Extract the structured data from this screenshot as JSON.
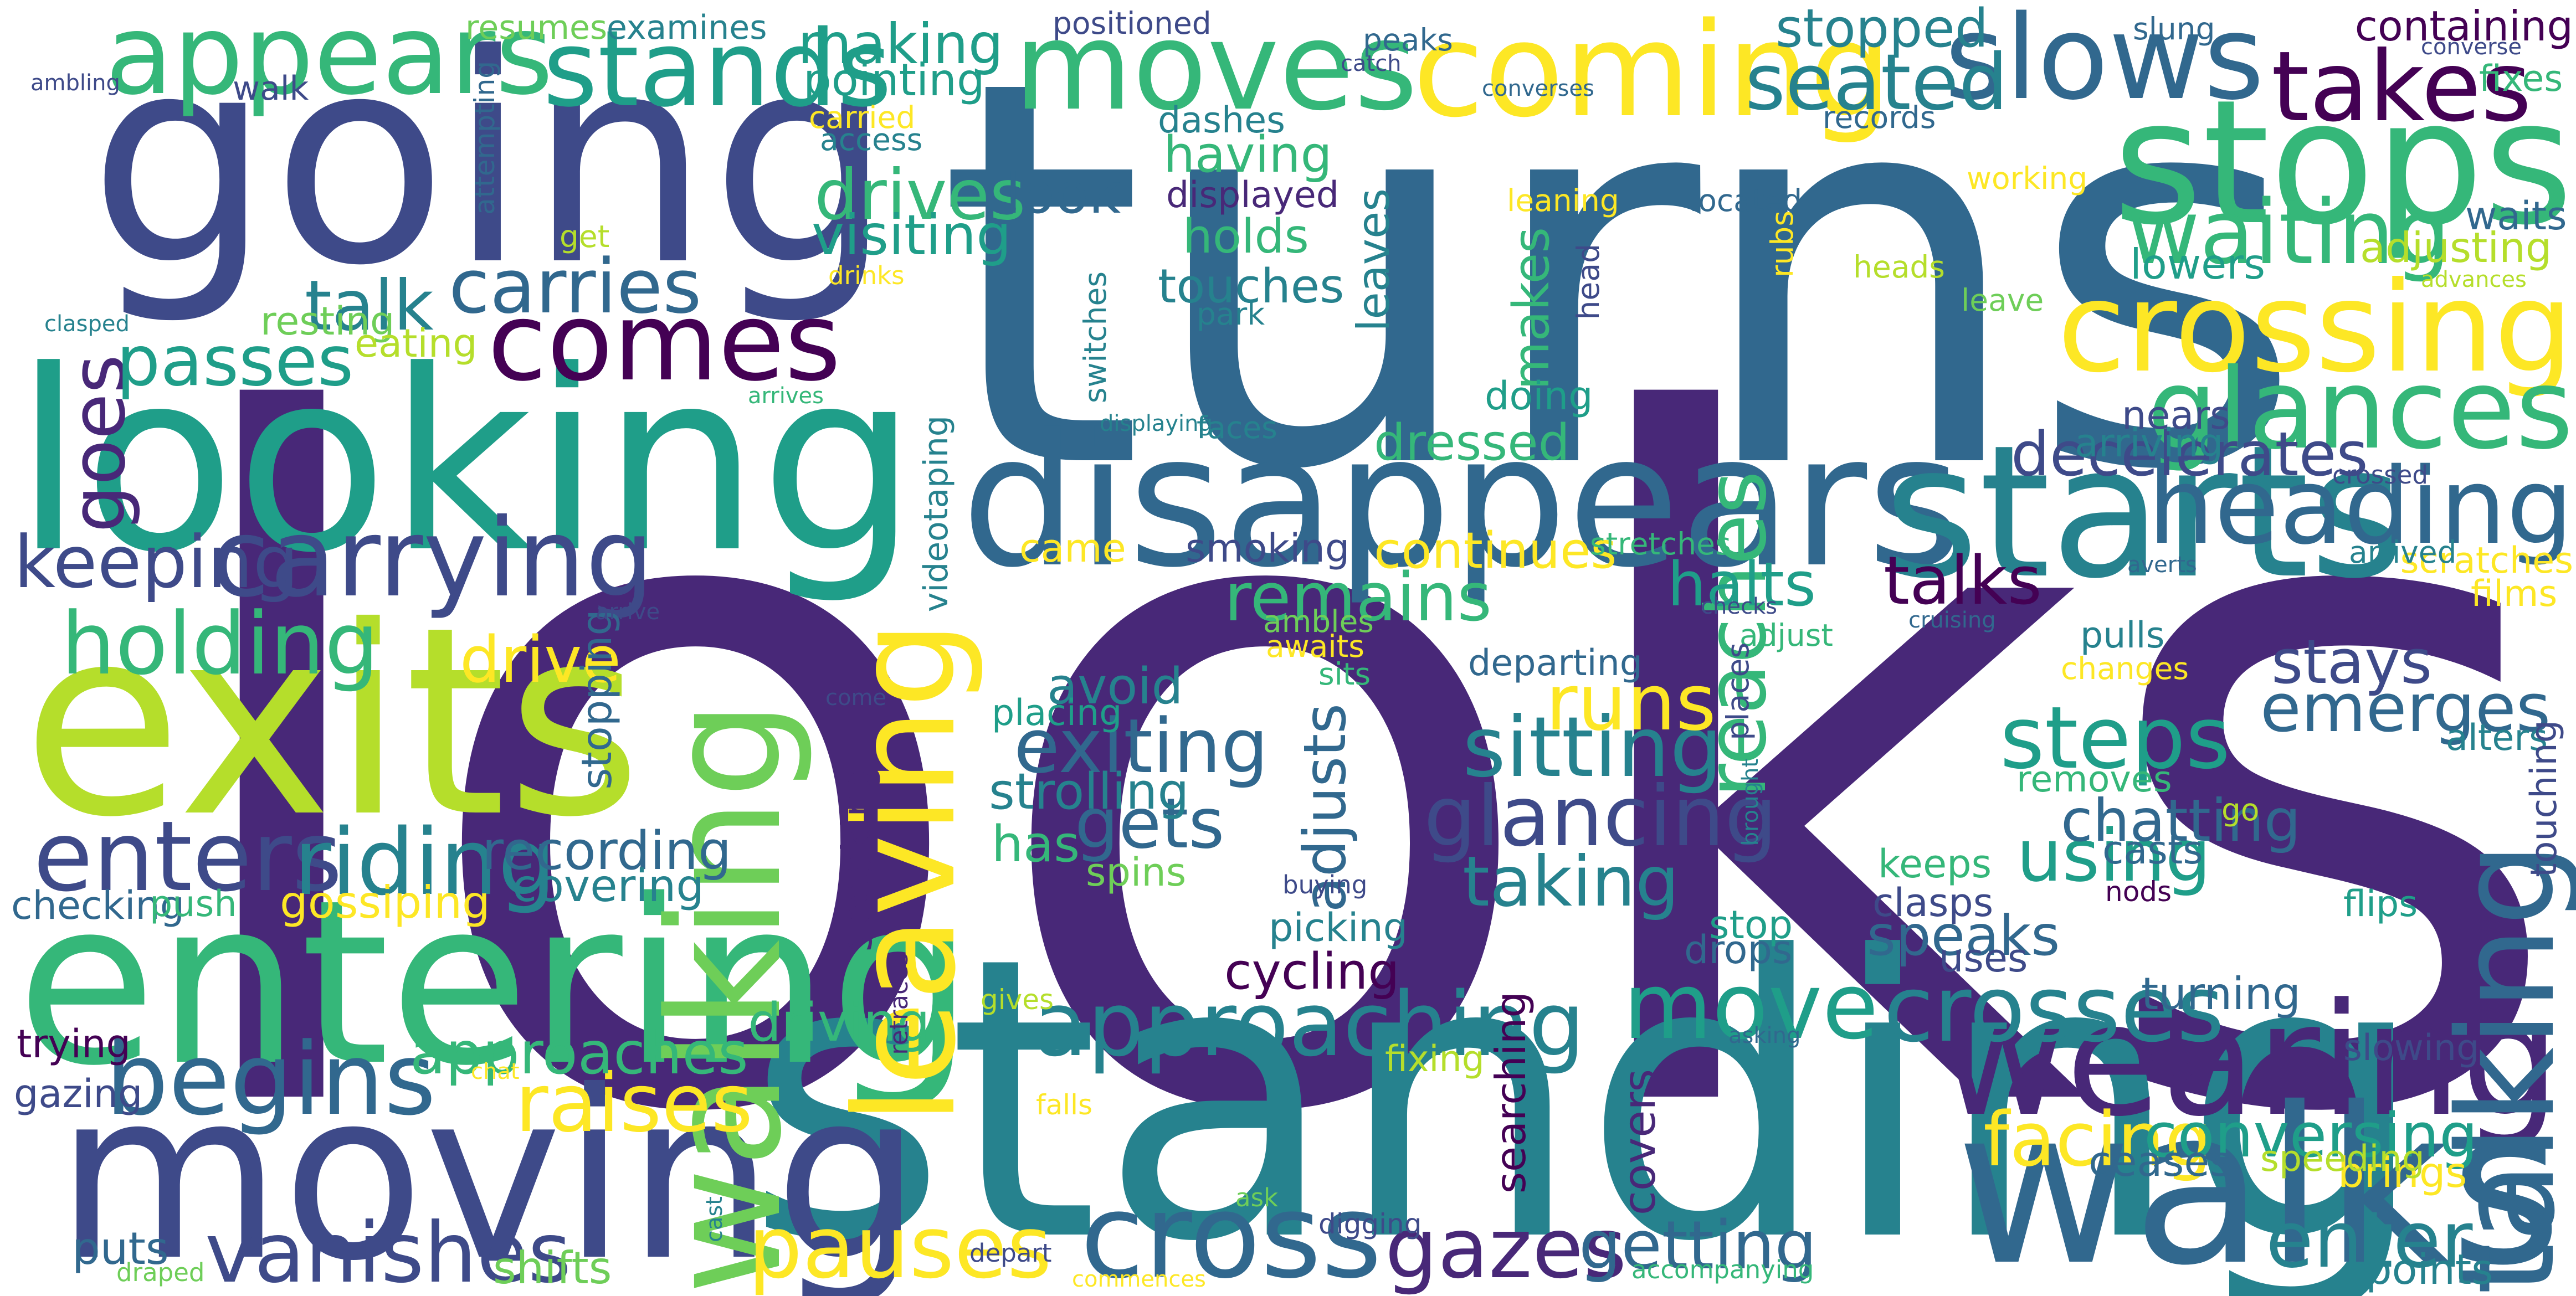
{
  "palette": {
    "dark_purple": "#440154",
    "indigo": "#482878",
    "slate_blue": "#3e4a89",
    "steel_blue": "#31688e",
    "teal_blue": "#26828e",
    "teal": "#1f9e89",
    "green_teal": "#35b779",
    "green": "#6ece58",
    "lime": "#b5de2b",
    "yellow": "#fde725"
  },
  "words": [
    {
      "text": "looks",
      "size": 230,
      "color": "#482878"
    },
    {
      "text": "turns",
      "size": 135,
      "color": "#31688e"
    },
    {
      "text": "standing",
      "size": 100,
      "color": "#26828e"
    },
    {
      "text": "going",
      "size": 70,
      "color": "#3e4a89"
    },
    {
      "text": "exits",
      "size": 64,
      "color": "#b5de2b"
    },
    {
      "text": "looking",
      "size": 62,
      "color": "#1f9e89"
    },
    {
      "text": "moving",
      "size": 58,
      "color": "#3e4a89"
    },
    {
      "text": "entering",
      "size": 56,
      "color": "#35b779"
    },
    {
      "text": "walks",
      "size": 54,
      "color": "#31688e"
    },
    {
      "text": "disappears",
      "size": 47,
      "color": "#31688e"
    },
    {
      "text": "starts",
      "size": 46,
      "color": "#26828e"
    },
    {
      "text": "stops",
      "size": 44,
      "color": "#35b779"
    },
    {
      "text": "wearing",
      "size": 40,
      "color": "#482878"
    },
    {
      "text": "walking",
      "size": 36,
      "color": "#6ece58"
    },
    {
      "text": "leaving",
      "size": 35,
      "color": "#fde725"
    },
    {
      "text": "talking",
      "size": 34,
      "color": "#31688e"
    },
    {
      "text": "coming",
      "size": 32,
      "color": "#fde725"
    },
    {
      "text": "crossing",
      "size": 31,
      "color": "#fde725"
    },
    {
      "text": "moves",
      "size": 30,
      "color": "#35b779"
    },
    {
      "text": "cross",
      "size": 30,
      "color": "#31688e"
    },
    {
      "text": "slows",
      "size": 29,
      "color": "#31688e"
    },
    {
      "text": "appears",
      "size": 28,
      "color": "#35b779"
    },
    {
      "text": "glances",
      "size": 28,
      "color": "#35b779"
    },
    {
      "text": "carrying",
      "size": 28,
      "color": "#3e4a89"
    },
    {
      "text": "comes",
      "size": 28,
      "color": "#440154"
    },
    {
      "text": "heading",
      "size": 27,
      "color": "#31688e"
    },
    {
      "text": "stands",
      "size": 26,
      "color": "#1f9e89"
    },
    {
      "text": "begins",
      "size": 26,
      "color": "#31688e"
    },
    {
      "text": "enters",
      "size": 25,
      "color": "#3e4a89"
    },
    {
      "text": "takes",
      "size": 24,
      "color": "#440154"
    },
    {
      "text": "crosses",
      "size": 23,
      "color": "#26828e"
    },
    {
      "text": "move",
      "size": 23,
      "color": "#1f9e89"
    },
    {
      "text": "riding",
      "size": 23,
      "color": "#26828e"
    },
    {
      "text": "approaching",
      "size": 23,
      "color": "#26828e"
    },
    {
      "text": "waiting",
      "size": 23,
      "color": "#35b779"
    },
    {
      "text": "holding",
      "size": 22,
      "color": "#35b779"
    },
    {
      "text": "steps",
      "size": 22,
      "color": "#1f9e89"
    },
    {
      "text": "pauses",
      "size": 22,
      "color": "#fde725"
    },
    {
      "text": "reaches",
      "size": 22,
      "color": "#35b779"
    },
    {
      "text": "vanishes",
      "size": 21,
      "color": "#3e4a89"
    },
    {
      "text": "gazes",
      "size": 21,
      "color": "#482878"
    },
    {
      "text": "sitting",
      "size": 21,
      "color": "#26828e"
    },
    {
      "text": "glancing",
      "size": 21,
      "color": "#3e4a89"
    },
    {
      "text": "raises",
      "size": 21,
      "color": "#fde725"
    },
    {
      "text": "seated",
      "size": 20,
      "color": "#26828e"
    },
    {
      "text": "runs",
      "size": 20,
      "color": "#fde725"
    },
    {
      "text": "enter",
      "size": 20,
      "color": "#26828e"
    },
    {
      "text": "facing",
      "size": 19,
      "color": "#fde725"
    },
    {
      "text": "exiting",
      "size": 19,
      "color": "#31688e"
    },
    {
      "text": "carries",
      "size": 19,
      "color": "#31688e"
    },
    {
      "text": "goes",
      "size": 19,
      "color": "#482878"
    },
    {
      "text": "using",
      "size": 19,
      "color": "#1f9e89"
    },
    {
      "text": "keeping",
      "size": 19,
      "color": "#3e4a89"
    },
    {
      "text": "drives",
      "size": 18,
      "color": "#35b779"
    },
    {
      "text": "passes",
      "size": 18,
      "color": "#1f9e89"
    },
    {
      "text": "talk",
      "size": 18,
      "color": "#26828e"
    },
    {
      "text": "gets",
      "size": 18,
      "color": "#31688e"
    },
    {
      "text": "taking",
      "size": 18,
      "color": "#26828e"
    },
    {
      "text": "remains",
      "size": 18,
      "color": "#35b779"
    },
    {
      "text": "emerges",
      "size": 18,
      "color": "#31688e"
    },
    {
      "text": "getting",
      "size": 18,
      "color": "#31688e"
    },
    {
      "text": "talks",
      "size": 18,
      "color": "#440154"
    },
    {
      "text": "drive",
      "size": 17,
      "color": "#fde725"
    },
    {
      "text": "conversing",
      "size": 17,
      "color": "#1f9e89"
    },
    {
      "text": "stays",
      "size": 17,
      "color": "#3e4a89"
    },
    {
      "text": "halts",
      "size": 17,
      "color": "#1f9e89"
    },
    {
      "text": "decelerates",
      "size": 17,
      "color": "#3e4a89"
    },
    {
      "text": "adjusts",
      "size": 17,
      "color": "#31688e"
    },
    {
      "text": "approaches",
      "size": 16,
      "color": "#35b779"
    },
    {
      "text": "chatting",
      "size": 16,
      "color": "#31688e"
    },
    {
      "text": "look",
      "size": 16,
      "color": "#31688e"
    },
    {
      "text": "making",
      "size": 16,
      "color": "#1f9e89"
    },
    {
      "text": "speaks",
      "size": 16,
      "color": "#31688e"
    },
    {
      "text": "visiting",
      "size": 16,
      "color": "#1f9e89"
    },
    {
      "text": "stopped",
      "size": 15,
      "color": "#26828e"
    },
    {
      "text": "driving",
      "size": 15,
      "color": "#35b779"
    },
    {
      "text": "recording",
      "size": 15,
      "color": "#31688e"
    },
    {
      "text": "cycling",
      "size": 15,
      "color": "#440154"
    },
    {
      "text": "continues",
      "size": 15,
      "color": "#fde725"
    },
    {
      "text": "avoid",
      "size": 15,
      "color": "#26828e"
    },
    {
      "text": "strolling",
      "size": 15,
      "color": "#26828e"
    },
    {
      "text": "dressed",
      "size": 15,
      "color": "#35b779"
    },
    {
      "text": "has",
      "size": 15,
      "color": "#35b779"
    },
    {
      "text": "having",
      "size": 15,
      "color": "#35b779"
    },
    {
      "text": "makes",
      "size": 15,
      "color": "#35b779"
    },
    {
      "text": "holds",
      "size": 14,
      "color": "#35b779"
    },
    {
      "text": "touches",
      "size": 14,
      "color": "#26828e"
    },
    {
      "text": "shifts",
      "size": 14,
      "color": "#6ece58"
    },
    {
      "text": "puts",
      "size": 14,
      "color": "#31688e"
    },
    {
      "text": "covering",
      "size": 14,
      "color": "#26828e"
    },
    {
      "text": "gossiping",
      "size": 14,
      "color": "#fde725"
    },
    {
      "text": "covers",
      "size": 14,
      "color": "#482878"
    },
    {
      "text": "turning",
      "size": 14,
      "color": "#31688e"
    },
    {
      "text": "pointing",
      "size": 14,
      "color": "#1f9e89"
    },
    {
      "text": "leaves",
      "size": 14,
      "color": "#26828e"
    },
    {
      "text": "stopping",
      "size": 14,
      "color": "#31688e"
    },
    {
      "text": "speaking",
      "size": 14,
      "color": "#482878"
    },
    {
      "text": "searching",
      "size": 14,
      "color": "#440154"
    },
    {
      "text": "adjusting",
      "size": 14,
      "color": "#b5de2b"
    },
    {
      "text": "containing",
      "size": 14,
      "color": "#440154"
    },
    {
      "text": "lowers",
      "size": 14,
      "color": "#1f9e89"
    },
    {
      "text": "ceases",
      "size": 14,
      "color": "#31688e"
    },
    {
      "text": "brings",
      "size": 14,
      "color": "#fde725"
    },
    {
      "text": "points",
      "size": 13,
      "color": "#26828e"
    },
    {
      "text": "doing",
      "size": 13,
      "color": "#1f9e89"
    },
    {
      "text": "drops",
      "size": 13,
      "color": "#31688e"
    },
    {
      "text": "nears",
      "size": 13,
      "color": "#3e4a89"
    },
    {
      "text": "arriving",
      "size": 13,
      "color": "#26828e"
    },
    {
      "text": "resting",
      "size": 13,
      "color": "#6ece58"
    },
    {
      "text": "eating",
      "size": 13,
      "color": "#b5de2b"
    },
    {
      "text": "trying",
      "size": 13,
      "color": "#440154"
    },
    {
      "text": "gazing",
      "size": 13,
      "color": "#3e4a89"
    },
    {
      "text": "checking",
      "size": 13,
      "color": "#31688e"
    },
    {
      "text": "picking",
      "size": 13,
      "color": "#26828e"
    },
    {
      "text": "spins",
      "size": 13,
      "color": "#6ece58"
    },
    {
      "text": "keeps",
      "size": 13,
      "color": "#35b779"
    },
    {
      "text": "clasps",
      "size": 13,
      "color": "#3e4a89"
    },
    {
      "text": "casts",
      "size": 13,
      "color": "#31688e"
    },
    {
      "text": "uses",
      "size": 13,
      "color": "#3e4a89"
    },
    {
      "text": "stop",
      "size": 13,
      "color": "#1f9e89"
    },
    {
      "text": "waits",
      "size": 13,
      "color": "#31688e"
    },
    {
      "text": "came",
      "size": 13,
      "color": "#fde725"
    },
    {
      "text": "smoking",
      "size": 13,
      "color": "#3e4a89"
    },
    {
      "text": "displayed",
      "size": 13,
      "color": "#482878"
    },
    {
      "text": "dashes",
      "size": 13,
      "color": "#26828e"
    },
    {
      "text": "removes",
      "size": 13,
      "color": "#35b779"
    },
    {
      "text": "departing",
      "size": 13,
      "color": "#31688e"
    },
    {
      "text": "placing",
      "size": 13,
      "color": "#1f9e89"
    },
    {
      "text": "fixing",
      "size": 13,
      "color": "#b5de2b"
    },
    {
      "text": "pulls",
      "size": 13,
      "color": "#26828e"
    },
    {
      "text": "slowing",
      "size": 13,
      "color": "#3e4a89"
    },
    {
      "text": "speeding",
      "size": 13,
      "color": "#b5de2b"
    },
    {
      "text": "scratches",
      "size": 13,
      "color": "#fde725"
    },
    {
      "text": "fixes",
      "size": 13,
      "color": "#35b779"
    },
    {
      "text": "films",
      "size": 13,
      "color": "#fde725"
    },
    {
      "text": "alters",
      "size": 13,
      "color": "#26828e"
    },
    {
      "text": "flips",
      "size": 13,
      "color": "#1f9e89"
    },
    {
      "text": "touching",
      "size": 13,
      "color": "#3e4a89"
    },
    {
      "text": "push",
      "size": 13,
      "color": "#35b779"
    },
    {
      "text": "videotaping",
      "size": 13,
      "color": "#26828e"
    },
    {
      "text": "walk",
      "size": 13,
      "color": "#3e4a89"
    },
    {
      "text": "resumes",
      "size": 13,
      "color": "#6ece58"
    },
    {
      "text": "examines",
      "size": 13,
      "color": "#26828e"
    },
    {
      "text": "positioned",
      "size": 12,
      "color": "#3e4a89"
    },
    {
      "text": "peaks",
      "size": 12,
      "color": "#31688e"
    },
    {
      "text": "slung",
      "size": 12,
      "color": "#31688e"
    },
    {
      "text": "access",
      "size": 12,
      "color": "#26828e"
    },
    {
      "text": "carried",
      "size": 12,
      "color": "#fde725"
    },
    {
      "text": "records",
      "size": 12,
      "color": "#31688e"
    },
    {
      "text": "working",
      "size": 12,
      "color": "#fde725"
    },
    {
      "text": "leaning",
      "size": 12,
      "color": "#fde725"
    },
    {
      "text": "located",
      "size": 12,
      "color": "#31688e"
    },
    {
      "text": "heads",
      "size": 12,
      "color": "#b5de2b"
    },
    {
      "text": "leave",
      "size": 12,
      "color": "#6ece58"
    },
    {
      "text": "head",
      "size": 12,
      "color": "#3e4a89"
    },
    {
      "text": "rubs",
      "size": 12,
      "color": "#fde725"
    },
    {
      "text": "park",
      "size": 12,
      "color": "#26828e"
    },
    {
      "text": "switches",
      "size": 12,
      "color": "#26828e"
    },
    {
      "text": "get",
      "size": 12,
      "color": "#b5de2b"
    },
    {
      "text": "attempting",
      "size": 12,
      "color": "#31688e"
    },
    {
      "text": "crossed",
      "size": 11,
      "color": "#3e4a89"
    },
    {
      "text": "arrived",
      "size": 12,
      "color": "#26828e"
    },
    {
      "text": "stretches",
      "size": 12,
      "color": "#35b779"
    },
    {
      "text": "adjust",
      "size": 12,
      "color": "#35b779"
    },
    {
      "text": "changes",
      "size": 12,
      "color": "#fde725"
    },
    {
      "text": "sits",
      "size": 12,
      "color": "#35b779"
    },
    {
      "text": "ambles",
      "size": 12,
      "color": "#6ece58"
    },
    {
      "text": "awaits",
      "size": 12,
      "color": "#fde725"
    },
    {
      "text": "places",
      "size": 12,
      "color": "#3e4a89"
    },
    {
      "text": "go",
      "size": 12,
      "color": "#b5de2b"
    },
    {
      "text": "nods",
      "size": 12,
      "color": "#440154"
    },
    {
      "text": "gives",
      "size": 12,
      "color": "#b5de2b"
    },
    {
      "text": "falls",
      "size": 12,
      "color": "#fde725"
    },
    {
      "text": "digging",
      "size": 12,
      "color": "#3e4a89"
    },
    {
      "text": "ask",
      "size": 11,
      "color": "#6ece58"
    },
    {
      "text": "depart",
      "size": 11,
      "color": "#3e4a89"
    },
    {
      "text": "accompanying",
      "size": 11,
      "color": "#35b779"
    },
    {
      "text": "commences",
      "size": 10,
      "color": "#fde725"
    },
    {
      "text": "draped",
      "size": 11,
      "color": "#6ece58"
    },
    {
      "text": "cast",
      "size": 10,
      "color": "#26828e"
    },
    {
      "text": "chat",
      "size": 10,
      "color": "#fde725"
    },
    {
      "text": "asking",
      "size": 10,
      "color": "#31688e"
    },
    {
      "text": "buying",
      "size": 10,
      "color": "#3e4a89"
    },
    {
      "text": "brought",
      "size": 10,
      "color": "#26828e"
    },
    {
      "text": "retraces",
      "size": 11,
      "color": "#482878"
    },
    {
      "text": "come",
      "size": 10,
      "color": "#3e4a89"
    },
    {
      "text": "arrive",
      "size": 10,
      "color": "#3e4a89"
    },
    {
      "text": "checks",
      "size": 10,
      "color": "#3e4a89"
    },
    {
      "text": "cruising",
      "size": 10,
      "color": "#31688e"
    },
    {
      "text": "averts",
      "size": 10,
      "color": "#31688e"
    },
    {
      "text": "displaying",
      "size": 10,
      "color": "#26828e"
    },
    {
      "text": "faces",
      "size": 12,
      "color": "#26828e"
    },
    {
      "text": "drinks",
      "size": 11,
      "color": "#fde725"
    },
    {
      "text": "clasped",
      "size": 10,
      "color": "#26828e"
    },
    {
      "text": "arrives",
      "size": 10,
      "color": "#35b779"
    },
    {
      "text": "catch",
      "size": 10,
      "color": "#3e4a89"
    },
    {
      "text": "converses",
      "size": 10,
      "color": "#31688e"
    },
    {
      "text": "converse",
      "size": 10,
      "color": "#3e4a89"
    },
    {
      "text": "advances",
      "size": 10,
      "color": "#b5de2b"
    },
    {
      "text": "ambling",
      "size": 10,
      "color": "#3e4a89"
    }
  ]
}
